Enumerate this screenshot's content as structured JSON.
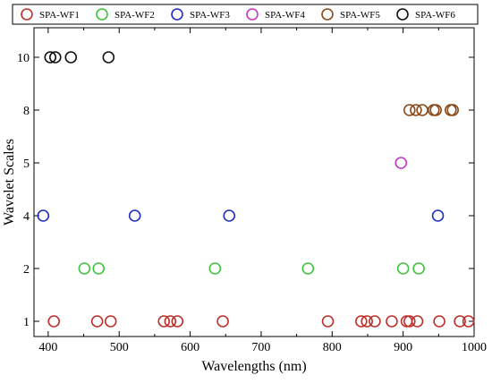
{
  "chart_data": {
    "type": "scatter",
    "title": "",
    "xlabel": "Wavelengths (nm)",
    "ylabel": "Wavelet Scales",
    "xlim": [
      380,
      1000
    ],
    "x_ticks": [
      "400",
      "500",
      "600",
      "700",
      "800",
      "900",
      "1000"
    ],
    "y_ticks": [
      "1",
      "2",
      "4",
      "5",
      "8",
      "10"
    ],
    "y_axis_note": "categorical scale levels, evenly spaced",
    "legend_placement": "top (above plot, single row)",
    "grid": false,
    "marker": "open circle",
    "series": [
      {
        "name": "SPA-WF1",
        "color": "#c0302a",
        "y": 1,
        "x": [
          408,
          469,
          488,
          563,
          572,
          582,
          646,
          794,
          841,
          849,
          860,
          884,
          905,
          909,
          920,
          951,
          980,
          992
        ]
      },
      {
        "name": "SPA-WF2",
        "color": "#3cc63c",
        "y": 2,
        "x": [
          451,
          471,
          635,
          766,
          900,
          922
        ]
      },
      {
        "name": "SPA-WF3",
        "color": "#1f2fc0",
        "y": 4,
        "x": [
          393,
          522,
          655,
          949
        ]
      },
      {
        "name": "SPA-WF4",
        "color": "#c636c6",
        "y": 5,
        "x": [
          897
        ]
      },
      {
        "name": "SPA-WF5",
        "color": "#8a4a1a",
        "y": 8,
        "x": [
          909,
          918,
          927,
          943,
          946,
          967,
          970
        ]
      },
      {
        "name": "SPA-WF6",
        "color": "#111111",
        "y": 10,
        "x": [
          403,
          410,
          432,
          485
        ]
      }
    ]
  }
}
